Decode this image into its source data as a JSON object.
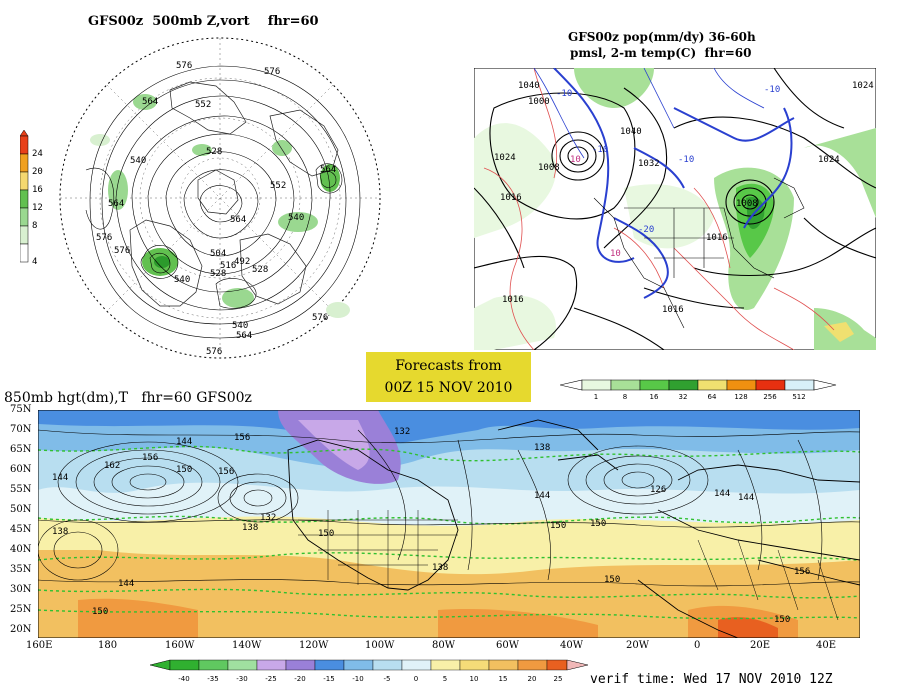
{
  "panel_500mb": {
    "title": "GFS00z  500mb Z,vort    fhr=60",
    "contour_labels": [
      "576",
      "576",
      "564",
      "552",
      "528",
      "516",
      "540",
      "552",
      "564",
      "564",
      "576",
      "576",
      "540",
      "564",
      "540",
      "528",
      "504",
      "516",
      "492",
      "528",
      "540",
      "552",
      "564",
      "576",
      "576"
    ],
    "colorbar_labels": [
      "24",
      "20",
      "16",
      "12",
      "8",
      "4"
    ],
    "colorbar_colors": [
      "#e8401a",
      "#f0a020",
      "#f5d870",
      "#62c050",
      "#9ad890",
      "#d8f0d0"
    ]
  },
  "panel_precip": {
    "title_line1": "GFS00z pop(mm/dy) 36-60h",
    "title_line2": "pmsl, 2-m temp(C)  fhr=60",
    "labels": [
      "1040",
      "1024",
      "1016",
      "1016",
      "1016",
      "1008",
      "1000",
      "1032",
      "1040",
      "1024",
      "1016",
      "1024",
      "-10",
      "-10",
      "-20",
      "10",
      "10",
      "-10",
      "-10",
      "1008"
    ],
    "colorbar_labels": [
      "1",
      "8",
      "16",
      "32",
      "64",
      "128",
      "256",
      "512"
    ],
    "colorbar_colors": [
      "#e8f8e0",
      "#a8e098",
      "#58c848",
      "#30a030",
      "#f0e070",
      "#f09010",
      "#e83010",
      "#d8f0f8"
    ]
  },
  "banner": {
    "line1": "Forecasts from",
    "line2": "00Z 15 NOV 2010"
  },
  "panel_850mb": {
    "title": "850mb hgt(dm),T   fhr=60 GFS00z",
    "lat_labels": [
      "75N",
      "70N",
      "65N",
      "60N",
      "55N",
      "50N",
      "45N",
      "40N",
      "35N",
      "30N",
      "25N",
      "20N"
    ],
    "lon_labels": [
      "160E",
      "180",
      "160W",
      "140W",
      "120W",
      "100W",
      "80W",
      "60W",
      "40W",
      "20W",
      "0",
      "20E",
      "40E"
    ],
    "height_labels": [
      "144",
      "156",
      "162",
      "150",
      "144",
      "138",
      "132",
      "156",
      "138",
      "150",
      "144",
      "156",
      "162",
      "150",
      "144",
      "138",
      "132",
      "126",
      "144",
      "150",
      "156",
      "150",
      "144",
      "150",
      "138",
      "150"
    ],
    "colorbar_labels": [
      "-40",
      "-35",
      "-30",
      "-25",
      "-20",
      "-15",
      "-10",
      "-5",
      "0",
      "5",
      "10",
      "15",
      "20",
      "25"
    ],
    "colorbar_colors": [
      "#30b030",
      "#60c860",
      "#a0e0a0",
      "#c8a8e8",
      "#9a80d8",
      "#4a8ee0",
      "#80bce8",
      "#b8def0",
      "#e0f2f8",
      "#f8f0a8",
      "#f5dc78",
      "#f2c060",
      "#f09a40",
      "#e86020",
      "#f0b8b8"
    ]
  },
  "verif": {
    "text": "verif time: Wed 17 NOV 2010 12Z"
  }
}
